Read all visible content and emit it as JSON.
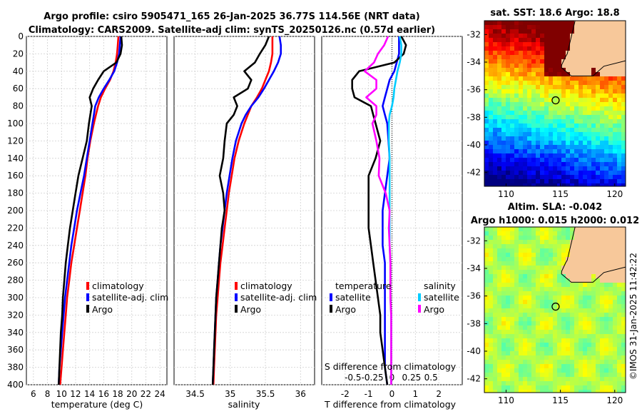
{
  "header": {
    "title_line1": "Argo profile: csiro 5905471_165 26-Jan-2025 36.77S 114.56E (NRT data)",
    "title_line2": "Climatology: CARS2009. Satellite-adj clim: synTS_20250126.nc (0.57d earlier)"
  },
  "colors": {
    "climatology": "#ff0000",
    "satellite_adj": "#0000ff",
    "argo": "#000000",
    "argo_diff": "#ff00ff",
    "satellite_salinity": "#00ccff"
  },
  "chart_data": [
    {
      "type": "line",
      "id": "temperature",
      "xlabel": "temperature (deg C)",
      "ylabel": "",
      "xlim": [
        5,
        25
      ],
      "ylim": [
        0,
        400
      ],
      "y_inverted": true,
      "grid": true,
      "xticks": [
        "6",
        "8",
        "10",
        "12",
        "14",
        "16",
        "18",
        "20",
        "22",
        "24"
      ],
      "yticks": [
        "0",
        "20",
        "40",
        "60",
        "80",
        "100",
        "120",
        "140",
        "160",
        "180",
        "200",
        "220",
        "240",
        "260",
        "280",
        "300",
        "320",
        "340",
        "360",
        "380",
        "400"
      ],
      "legend": [
        "climatology",
        "satellite-adj. clim",
        "Argo"
      ],
      "legend_placement": "right",
      "depth": [
        0,
        10,
        20,
        30,
        40,
        50,
        60,
        70,
        80,
        90,
        100,
        120,
        140,
        160,
        180,
        200,
        220,
        240,
        260,
        280,
        300,
        320,
        340,
        360,
        380,
        400
      ],
      "series": [
        {
          "name": "climatology",
          "values": [
            18.1,
            18.0,
            17.9,
            17.7,
            17.4,
            16.9,
            16.2,
            15.6,
            15.2,
            14.9,
            14.6,
            14.1,
            13.7,
            13.4,
            13.0,
            12.6,
            12.2,
            11.8,
            11.4,
            11.1,
            10.8,
            10.6,
            10.4,
            10.2,
            10.0,
            9.8
          ]
        },
        {
          "name": "satellite-adj. clim",
          "values": [
            18.4,
            18.3,
            18.2,
            17.9,
            17.5,
            16.8,
            16.0,
            15.3,
            14.8,
            14.6,
            14.4,
            14.0,
            13.6,
            13.2,
            12.7,
            12.2,
            11.8,
            11.4,
            11.1,
            10.8,
            10.5,
            10.3,
            10.1,
            9.9,
            9.7,
            9.6
          ]
        },
        {
          "name": "Argo",
          "values": [
            18.5,
            18.6,
            18.4,
            17.8,
            16.0,
            15.2,
            14.5,
            14.0,
            14.3,
            14.1,
            13.9,
            13.6,
            13.0,
            12.4,
            12.0,
            11.6,
            11.2,
            10.9,
            10.6,
            10.4,
            10.2,
            10.1,
            9.9,
            9.8,
            9.7,
            9.6
          ]
        }
      ]
    },
    {
      "type": "line",
      "id": "salinity",
      "xlabel": "salinity",
      "xlim": [
        34.2,
        36.2
      ],
      "ylim": [
        0,
        400
      ],
      "y_inverted": true,
      "grid": true,
      "xticks": [
        "34.5",
        "35",
        "35.5",
        "36"
      ],
      "legend": [
        "climatology",
        "satellite-adj. clim",
        "Argo"
      ],
      "legend_placement": "right",
      "depth": [
        0,
        10,
        20,
        30,
        40,
        50,
        60,
        70,
        80,
        90,
        100,
        120,
        140,
        160,
        180,
        200,
        220,
        240,
        260,
        280,
        300,
        320,
        340,
        360,
        380,
        400
      ],
      "series": [
        {
          "name": "climatology",
          "values": [
            35.6,
            35.6,
            35.6,
            35.58,
            35.55,
            35.5,
            35.45,
            35.38,
            35.3,
            35.25,
            35.2,
            35.12,
            35.06,
            35.02,
            34.98,
            34.95,
            34.92,
            34.89,
            34.86,
            34.84,
            34.82,
            34.8,
            34.79,
            34.78,
            34.77,
            34.76
          ]
        },
        {
          "name": "satellite-adj. clim",
          "values": [
            35.7,
            35.72,
            35.72,
            35.68,
            35.62,
            35.55,
            35.48,
            35.4,
            35.3,
            35.22,
            35.16,
            35.08,
            35.03,
            34.99,
            34.95,
            34.92,
            34.89,
            34.86,
            34.84,
            34.82,
            34.8,
            34.79,
            34.78,
            34.77,
            34.76,
            34.75
          ]
        },
        {
          "name": "Argo",
          "values": [
            35.55,
            35.5,
            35.42,
            35.35,
            35.2,
            35.3,
            35.25,
            35.05,
            35.1,
            35.05,
            34.95,
            34.92,
            34.9,
            34.85,
            34.9,
            34.92,
            34.88,
            34.86,
            34.84,
            34.82,
            34.8,
            34.79,
            34.78,
            34.77,
            34.76,
            34.75
          ]
        }
      ]
    },
    {
      "type": "line",
      "id": "difference",
      "xlabel": "T difference from climatology",
      "top_xlabel": "S difference from climatology",
      "xlim": [
        -3,
        3
      ],
      "top_xlim": [
        -0.9,
        0.9
      ],
      "ylim": [
        0,
        400
      ],
      "y_inverted": true,
      "grid": true,
      "xticks": [
        "-2",
        "-1",
        "0",
        "1",
        "2"
      ],
      "top_xticks": [
        "-0.5",
        "-0.25",
        "0",
        "0.25",
        "0.5"
      ],
      "legend": [
        "temperature",
        "satellite",
        "Argo",
        "salinity",
        "satellite",
        "Argo"
      ],
      "depth": [
        0,
        10,
        20,
        30,
        40,
        50,
        60,
        70,
        80,
        90,
        100,
        120,
        140,
        160,
        180,
        200,
        220,
        240,
        260,
        280,
        300,
        320,
        340,
        360,
        380,
        400
      ],
      "series": [
        {
          "name": "T satellite",
          "axis": "T",
          "values": [
            0.3,
            0.3,
            0.3,
            0.2,
            0.1,
            -0.1,
            -0.2,
            -0.3,
            -0.4,
            -0.3,
            -0.2,
            -0.15,
            -0.1,
            -0.2,
            -0.3,
            -0.4,
            -0.4,
            -0.4,
            -0.3,
            -0.3,
            -0.3,
            -0.3,
            -0.3,
            -0.3,
            -0.3,
            -0.2
          ]
        },
        {
          "name": "T Argo",
          "axis": "T",
          "values": [
            0.4,
            0.6,
            0.5,
            0.1,
            -1.4,
            -1.7,
            -1.7,
            -1.6,
            -0.9,
            -0.8,
            -0.7,
            -0.5,
            -0.7,
            -1.0,
            -1.0,
            -1.0,
            -1.0,
            -0.9,
            -0.8,
            -0.7,
            -0.6,
            -0.5,
            -0.5,
            -0.4,
            -0.3,
            -0.2
          ]
        },
        {
          "name": "S satellite",
          "axis": "S",
          "values": [
            0.1,
            0.12,
            0.12,
            0.1,
            0.07,
            0.05,
            0.03,
            0.02,
            0.0,
            -0.03,
            -0.04,
            -0.04,
            -0.03,
            -0.03,
            -0.03,
            -0.03,
            -0.03,
            -0.03,
            -0.02,
            -0.02,
            -0.02,
            -0.01,
            -0.01,
            -0.01,
            -0.01,
            -0.01
          ]
        },
        {
          "name": "S Argo",
          "axis": "S",
          "values": [
            -0.05,
            -0.1,
            -0.18,
            -0.23,
            -0.35,
            -0.2,
            -0.2,
            -0.33,
            -0.2,
            -0.2,
            -0.25,
            -0.2,
            -0.16,
            -0.17,
            -0.08,
            -0.03,
            -0.04,
            -0.03,
            -0.02,
            -0.02,
            -0.02,
            -0.01,
            -0.01,
            -0.01,
            -0.01,
            -0.01
          ]
        }
      ]
    },
    {
      "type": "heatmap",
      "id": "sst_map",
      "title": "sat. SST: 18.6 Argo: 18.8",
      "xlim": [
        108,
        121
      ],
      "ylim": [
        -43,
        -31
      ],
      "xticks": [
        "110",
        "115",
        "120"
      ],
      "yticks": [
        "-32",
        "-34",
        "-36",
        "-38",
        "-40",
        "-42"
      ],
      "marker": {
        "lon": 114.56,
        "lat": -36.77
      }
    },
    {
      "type": "heatmap",
      "id": "sla_map",
      "title_line1": "Altim. SLA: -0.042",
      "title_line2": "Argo h1000: 0.015 h2000: 0.012",
      "xlim": [
        108,
        121
      ],
      "ylim": [
        -43,
        -31
      ],
      "xticks": [
        "110",
        "115",
        "120"
      ],
      "yticks": [
        "-32",
        "-34",
        "-36",
        "-38",
        "-40",
        "-42"
      ],
      "marker": {
        "lon": 114.56,
        "lat": -36.77
      }
    }
  ],
  "footer": {
    "copyright": "©IMOS 31-Jan-2025 11:42:22"
  }
}
